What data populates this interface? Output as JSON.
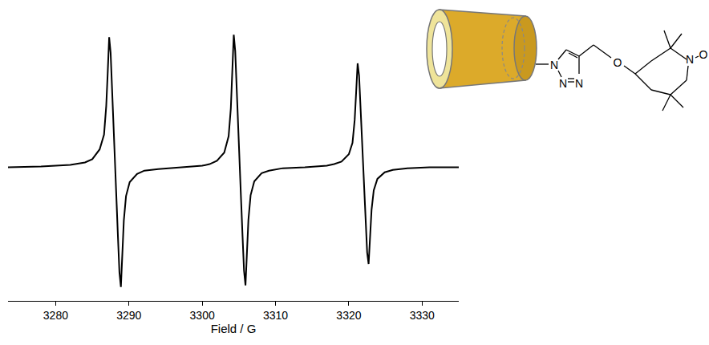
{
  "chart_data": {
    "type": "line",
    "x_label": "Field / G",
    "x": [
      3273.5,
      3278,
      3282,
      3284,
      3285,
      3286,
      3286.6,
      3286.9,
      3287.1,
      3287.3,
      3287.5,
      3287.7,
      3287.9,
      3288.1,
      3288.3,
      3288.5,
      3288.7,
      3288.9,
      3289.1,
      3289.3,
      3289.6,
      3290.1,
      3291.1,
      3292.1,
      3294,
      3297,
      3300,
      3301,
      3302,
      3303,
      3303.6,
      3303.9,
      3304.1,
      3304.3,
      3304.5,
      3304.7,
      3304.9,
      3305.1,
      3305.3,
      3305.5,
      3305.7,
      3305.9,
      3306.1,
      3306.3,
      3306.6,
      3307.1,
      3308.1,
      3309.1,
      3311,
      3314,
      3317,
      3318,
      3319,
      3320,
      3320.5,
      3320.8,
      3321.0,
      3321.2,
      3321.4,
      3321.6,
      3321.8,
      3321.95,
      3322.1,
      3322.3,
      3322.5,
      3322.7,
      3322.9,
      3323.1,
      3323.4,
      3323.9,
      3324.9,
      3326,
      3328,
      3331,
      3335
    ],
    "values": [
      0,
      1,
      3,
      6,
      10,
      22,
      40,
      75,
      115,
      159,
      140,
      90,
      40,
      0,
      -40,
      -85,
      -128,
      -146,
      -105,
      -65,
      -35,
      -18,
      -8,
      -4,
      -2,
      0,
      2,
      4,
      8,
      18,
      38,
      72,
      115,
      162,
      142,
      92,
      42,
      0,
      -40,
      -84,
      -126,
      -144,
      -104,
      -64,
      -34,
      -17,
      -7,
      -4,
      -1,
      0,
      2,
      4,
      7,
      16,
      30,
      58,
      92,
      127,
      112,
      72,
      32,
      0,
      -32,
      -70,
      -104,
      -118,
      -85,
      -52,
      -28,
      -14,
      -6,
      -3,
      -1,
      0,
      0
    ],
    "color": "#000000",
    "xlim": [
      3273.5,
      3335
    ],
    "xticks": [
      3280,
      3290,
      3300,
      3310,
      3320,
      3330
    ],
    "ylim": [
      -163,
      175
    ],
    "yticks": [],
    "tick_labels": "x",
    "grid": false
  },
  "structure": {
    "atom_labels": [
      "N",
      "N",
      "N",
      "O",
      "N",
      "O"
    ]
  }
}
